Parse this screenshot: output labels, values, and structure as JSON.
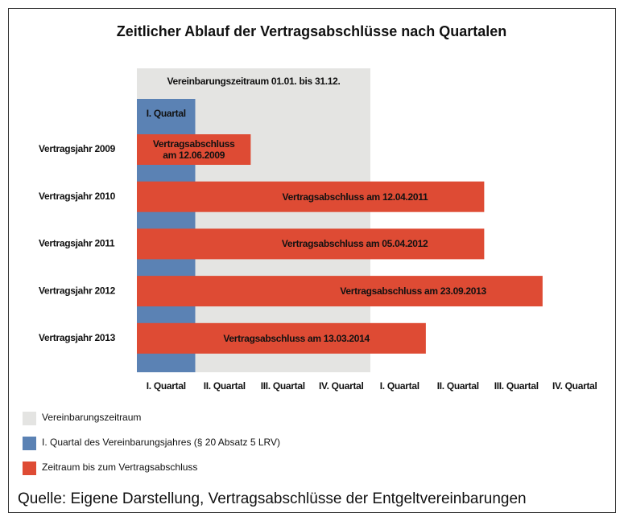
{
  "chart_data": {
    "type": "bar",
    "orientation": "horizontal",
    "title": "Zeitlicher Ablauf der Vertragsabschlüsse nach Quartalen",
    "categories": [
      "Vertragsjahr 2009",
      "Vertragsjahr 2010",
      "Vertragsjahr 2011",
      "Vertragsjahr 2012",
      "Vertragsjahr 2013"
    ],
    "series": [
      {
        "name": "Zeitraum bis zum Vertragsabschluss",
        "color": "#de4b34",
        "values": [
          1.95,
          5.95,
          5.95,
          6.95,
          4.95
        ],
        "value_labels": [
          "Vertragsabschluss am 12.06.2009",
          "Vertragsabschluss am 12.04.2011",
          "Vertragsabschluss am 05.04.2012",
          "Vertragsabschluss am 23.09.2013",
          "Vertragsabschluss am 13.03.2014"
        ]
      }
    ],
    "spans": [
      {
        "name": "Vereinbarungszeitraum",
        "label": "Vereinbarungszeitraum 01.01. bis 31.12.",
        "color": "#e4e4e2",
        "end": 4
      },
      {
        "name": "I. Quartal des Vereinbarungsjahres (§ 20 Absatz 5 LRV)",
        "label": "I. Quartal",
        "color": "#5b82b4",
        "end": 1
      }
    ],
    "xlim": [
      0,
      8
    ],
    "xcategories": [
      "I. Quartal",
      "II. Quartal",
      "III. Quartal",
      "IV. Quartal",
      "I. Quartal",
      "II. Quartal",
      "III. Quartal",
      "IV. Quartal"
    ],
    "source": "Quelle: Eigene Darstellung, Vertragsabschlüsse der Entgeltvereinbarungen"
  }
}
